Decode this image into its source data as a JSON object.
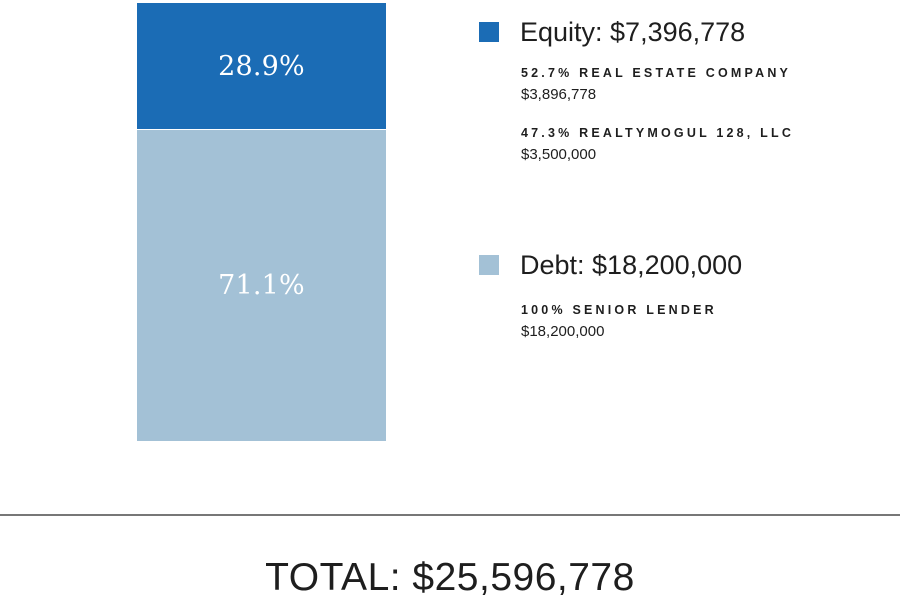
{
  "chart_data": {
    "type": "bar",
    "stacked": true,
    "segments": [
      {
        "name": "Equity",
        "percent": 28.9,
        "label": "28.9%",
        "color": "#1b6cb5"
      },
      {
        "name": "Debt",
        "percent": 71.1,
        "label": "71.1%",
        "color": "#a3c1d6"
      }
    ]
  },
  "legend": {
    "equity": {
      "title": "Equity: $7,396,778",
      "color": "#1b6cb5",
      "holders": [
        {
          "name": "52.7% REAL ESTATE COMPANY",
          "amount": "$3,896,778"
        },
        {
          "name": "47.3% REALTYMOGUL 128, LLC",
          "amount": "$3,500,000"
        }
      ]
    },
    "debt": {
      "title": "Debt: $18,200,000",
      "color": "#a3c1d6",
      "holders": [
        {
          "name": "100% SENIOR LENDER",
          "amount": "$18,200,000"
        }
      ]
    }
  },
  "total": "TOTAL: $25,596,778"
}
